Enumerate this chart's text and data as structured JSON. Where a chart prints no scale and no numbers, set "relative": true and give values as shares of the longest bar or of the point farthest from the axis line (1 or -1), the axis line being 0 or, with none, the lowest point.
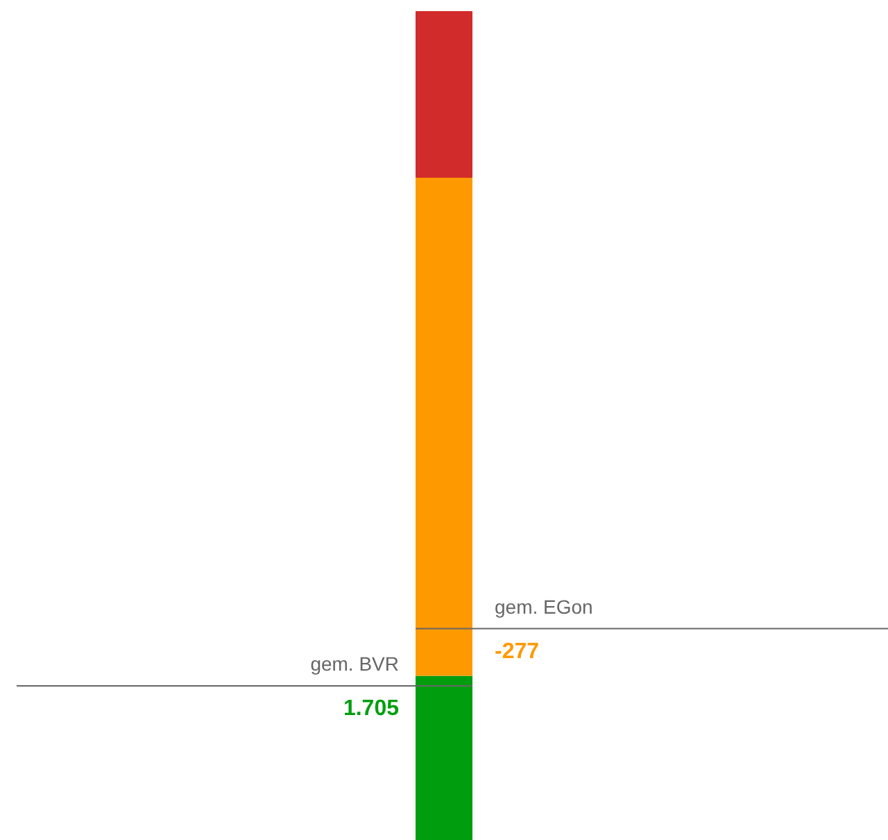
{
  "chart_data": {
    "type": "bar",
    "stacked": true,
    "relative": true,
    "categories": [
      null
    ],
    "series": [
      {
        "color": "#009e0f",
        "values": [
          0.198
        ]
      },
      {
        "color": "#ff9900",
        "values": [
          0.601
        ]
      },
      {
        "color": "#d22b2b",
        "values": [
          0.201
        ]
      }
    ],
    "ref_lines": [
      {
        "axis": "y",
        "value": 0.186,
        "label": "gem. BVR",
        "color": "#666666"
      },
      {
        "axis": "y",
        "value": 0.255,
        "label": "gem. EGon",
        "color": "#666666"
      }
    ],
    "annotations": [
      {
        "text": "1.705",
        "y": 0.186
      },
      {
        "text": "-277",
        "y": 0.255
      }
    ]
  }
}
